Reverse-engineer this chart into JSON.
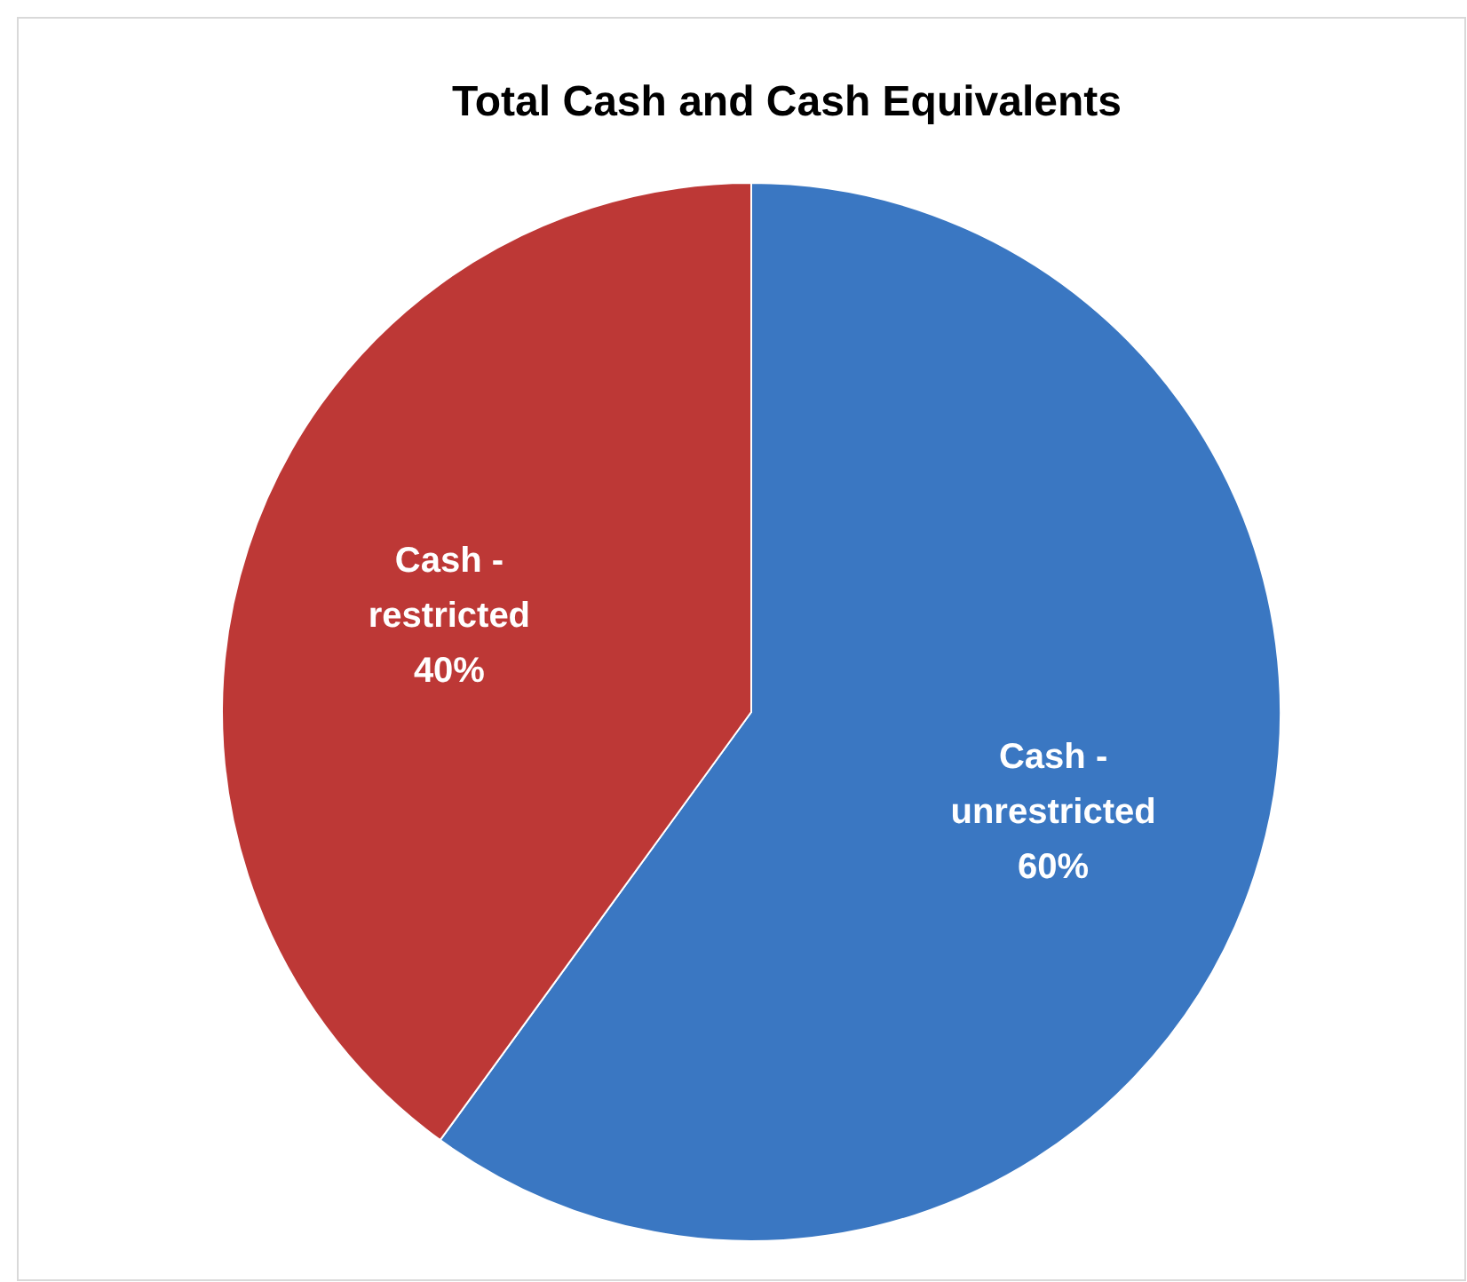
{
  "chart_data": {
    "type": "pie",
    "title": "Total Cash and Cash Equivalents",
    "categories": [
      "Cash - unrestricted",
      "Cash - restricted"
    ],
    "values": [
      60,
      40
    ],
    "colors": [
      "#3a77c2",
      "#bd3836"
    ],
    "value_labels": [
      "60%",
      "40%"
    ]
  }
}
